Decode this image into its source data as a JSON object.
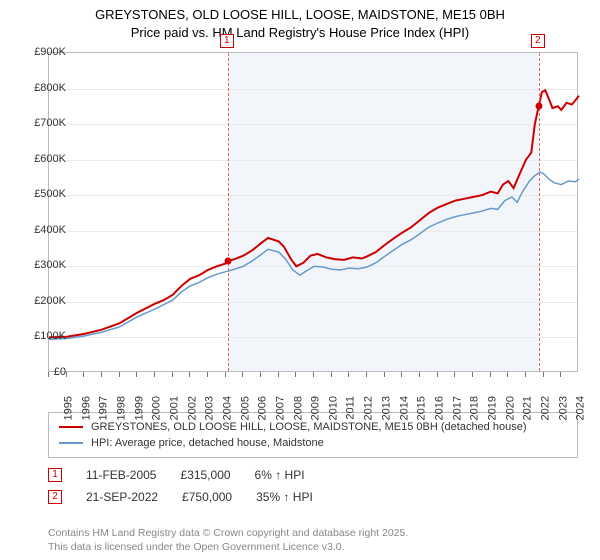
{
  "title": {
    "line1": "GREYSTONES, OLD LOOSE HILL, LOOSE, MAIDSTONE, ME15 0BH",
    "line2": "Price paid vs. HM Land Registry's House Price Index (HPI)"
  },
  "chart": {
    "type": "line",
    "background_color": "#ffffff",
    "shade_color": "#f2f6fb",
    "grid_color": "#eaeaea",
    "border_color": "#bbbbbb",
    "ylim": [
      0,
      900
    ],
    "ytick_step": 100,
    "y_unit_prefix": "£",
    "y_unit_suffix": "K",
    "x_labels": [
      "1995",
      "1996",
      "1997",
      "1998",
      "1999",
      "2000",
      "2001",
      "2002",
      "2003",
      "2004",
      "2005",
      "2006",
      "2007",
      "2008",
      "2009",
      "2010",
      "2011",
      "2012",
      "2013",
      "2014",
      "2015",
      "2016",
      "2017",
      "2018",
      "2019",
      "2020",
      "2021",
      "2022",
      "2023",
      "2024"
    ],
    "x_start_year": 1995,
    "x_end_year": 2025,
    "shade_start_year": 2005.12,
    "shade_end_year": 2022.72,
    "tick_fontsize": 11,
    "label_color": "#333333",
    "series": [
      {
        "name": "property",
        "color": "#cc0000",
        "width": 2,
        "label": "GREYSTONES, OLD LOOSE HILL, LOOSE, MAIDSTONE, ME15 0BH (detached house)",
        "points": [
          [
            1995.0,
            100
          ],
          [
            1996.0,
            102
          ],
          [
            1997.0,
            110
          ],
          [
            1998.0,
            122
          ],
          [
            1999.0,
            140
          ],
          [
            2000.0,
            170
          ],
          [
            2001.0,
            195
          ],
          [
            2001.5,
            205
          ],
          [
            2002.0,
            220
          ],
          [
            2002.5,
            245
          ],
          [
            2003.0,
            265
          ],
          [
            2003.5,
            275
          ],
          [
            2004.0,
            290
          ],
          [
            2004.5,
            300
          ],
          [
            2005.0,
            308
          ],
          [
            2005.12,
            315
          ],
          [
            2005.5,
            320
          ],
          [
            2006.0,
            330
          ],
          [
            2006.5,
            345
          ],
          [
            2007.0,
            365
          ],
          [
            2007.4,
            380
          ],
          [
            2007.7,
            375
          ],
          [
            2008.0,
            370
          ],
          [
            2008.3,
            355
          ],
          [
            2008.7,
            320
          ],
          [
            2009.0,
            300
          ],
          [
            2009.4,
            310
          ],
          [
            2009.8,
            330
          ],
          [
            2010.2,
            335
          ],
          [
            2010.7,
            325
          ],
          [
            2011.2,
            320
          ],
          [
            2011.7,
            318
          ],
          [
            2012.2,
            325
          ],
          [
            2012.7,
            322
          ],
          [
            2013.0,
            328
          ],
          [
            2013.5,
            340
          ],
          [
            2014.0,
            360
          ],
          [
            2014.5,
            378
          ],
          [
            2015.0,
            395
          ],
          [
            2015.5,
            410
          ],
          [
            2016.0,
            430
          ],
          [
            2016.5,
            450
          ],
          [
            2017.0,
            465
          ],
          [
            2017.5,
            475
          ],
          [
            2018.0,
            485
          ],
          [
            2018.5,
            490
          ],
          [
            2019.0,
            495
          ],
          [
            2019.5,
            500
          ],
          [
            2020.0,
            510
          ],
          [
            2020.4,
            505
          ],
          [
            2020.7,
            530
          ],
          [
            2021.0,
            540
          ],
          [
            2021.3,
            520
          ],
          [
            2021.6,
            555
          ],
          [
            2022.0,
            600
          ],
          [
            2022.3,
            620
          ],
          [
            2022.5,
            700
          ],
          [
            2022.72,
            750
          ],
          [
            2022.9,
            790
          ],
          [
            2023.1,
            795
          ],
          [
            2023.3,
            770
          ],
          [
            2023.5,
            745
          ],
          [
            2023.8,
            750
          ],
          [
            2024.0,
            740
          ],
          [
            2024.3,
            760
          ],
          [
            2024.6,
            755
          ],
          [
            2025.0,
            780
          ]
        ]
      },
      {
        "name": "hpi",
        "color": "#6699cc",
        "width": 1.5,
        "label": "HPI: Average price, detached house, Maidstone",
        "points": [
          [
            1995.0,
            95
          ],
          [
            1996.0,
            97
          ],
          [
            1997.0,
            104
          ],
          [
            1998.0,
            115
          ],
          [
            1999.0,
            130
          ],
          [
            2000.0,
            158
          ],
          [
            2001.0,
            180
          ],
          [
            2002.0,
            205
          ],
          [
            2002.5,
            228
          ],
          [
            2003.0,
            245
          ],
          [
            2003.5,
            255
          ],
          [
            2004.0,
            268
          ],
          [
            2004.5,
            278
          ],
          [
            2005.0,
            285
          ],
          [
            2005.5,
            292
          ],
          [
            2006.0,
            300
          ],
          [
            2006.5,
            315
          ],
          [
            2007.0,
            333
          ],
          [
            2007.4,
            348
          ],
          [
            2008.0,
            340
          ],
          [
            2008.4,
            320
          ],
          [
            2008.8,
            290
          ],
          [
            2009.2,
            275
          ],
          [
            2009.6,
            288
          ],
          [
            2010.0,
            300
          ],
          [
            2010.5,
            298
          ],
          [
            2011.0,
            292
          ],
          [
            2011.5,
            290
          ],
          [
            2012.0,
            295
          ],
          [
            2012.5,
            293
          ],
          [
            2013.0,
            298
          ],
          [
            2013.5,
            310
          ],
          [
            2014.0,
            328
          ],
          [
            2014.5,
            345
          ],
          [
            2015.0,
            362
          ],
          [
            2015.5,
            375
          ],
          [
            2016.0,
            392
          ],
          [
            2016.5,
            410
          ],
          [
            2017.0,
            422
          ],
          [
            2017.5,
            432
          ],
          [
            2018.0,
            440
          ],
          [
            2018.5,
            445
          ],
          [
            2019.0,
            450
          ],
          [
            2019.5,
            455
          ],
          [
            2020.0,
            463
          ],
          [
            2020.4,
            460
          ],
          [
            2020.8,
            485
          ],
          [
            2021.2,
            495
          ],
          [
            2021.5,
            480
          ],
          [
            2021.8,
            510
          ],
          [
            2022.2,
            540
          ],
          [
            2022.5,
            555
          ],
          [
            2022.8,
            565
          ],
          [
            2023.0,
            560
          ],
          [
            2023.3,
            545
          ],
          [
            2023.6,
            535
          ],
          [
            2024.0,
            530
          ],
          [
            2024.4,
            540
          ],
          [
            2024.8,
            538
          ],
          [
            2025.0,
            545
          ]
        ]
      }
    ],
    "markers": [
      {
        "id": "1",
        "year": 2005.12,
        "value": 315
      },
      {
        "id": "2",
        "year": 2022.72,
        "value": 750
      }
    ],
    "marker_color": "#cc0000",
    "marker_line_color": "#e06666"
  },
  "sales": [
    {
      "id": "1",
      "date": "11-FEB-2005",
      "price": "£315,000",
      "delta": "6% ↑ HPI"
    },
    {
      "id": "2",
      "date": "21-SEP-2022",
      "price": "£750,000",
      "delta": "35% ↑ HPI"
    }
  ],
  "footer": {
    "line1": "Contains HM Land Registry data © Crown copyright and database right 2025.",
    "line2": "This data is licensed under the Open Government Licence v3.0."
  }
}
